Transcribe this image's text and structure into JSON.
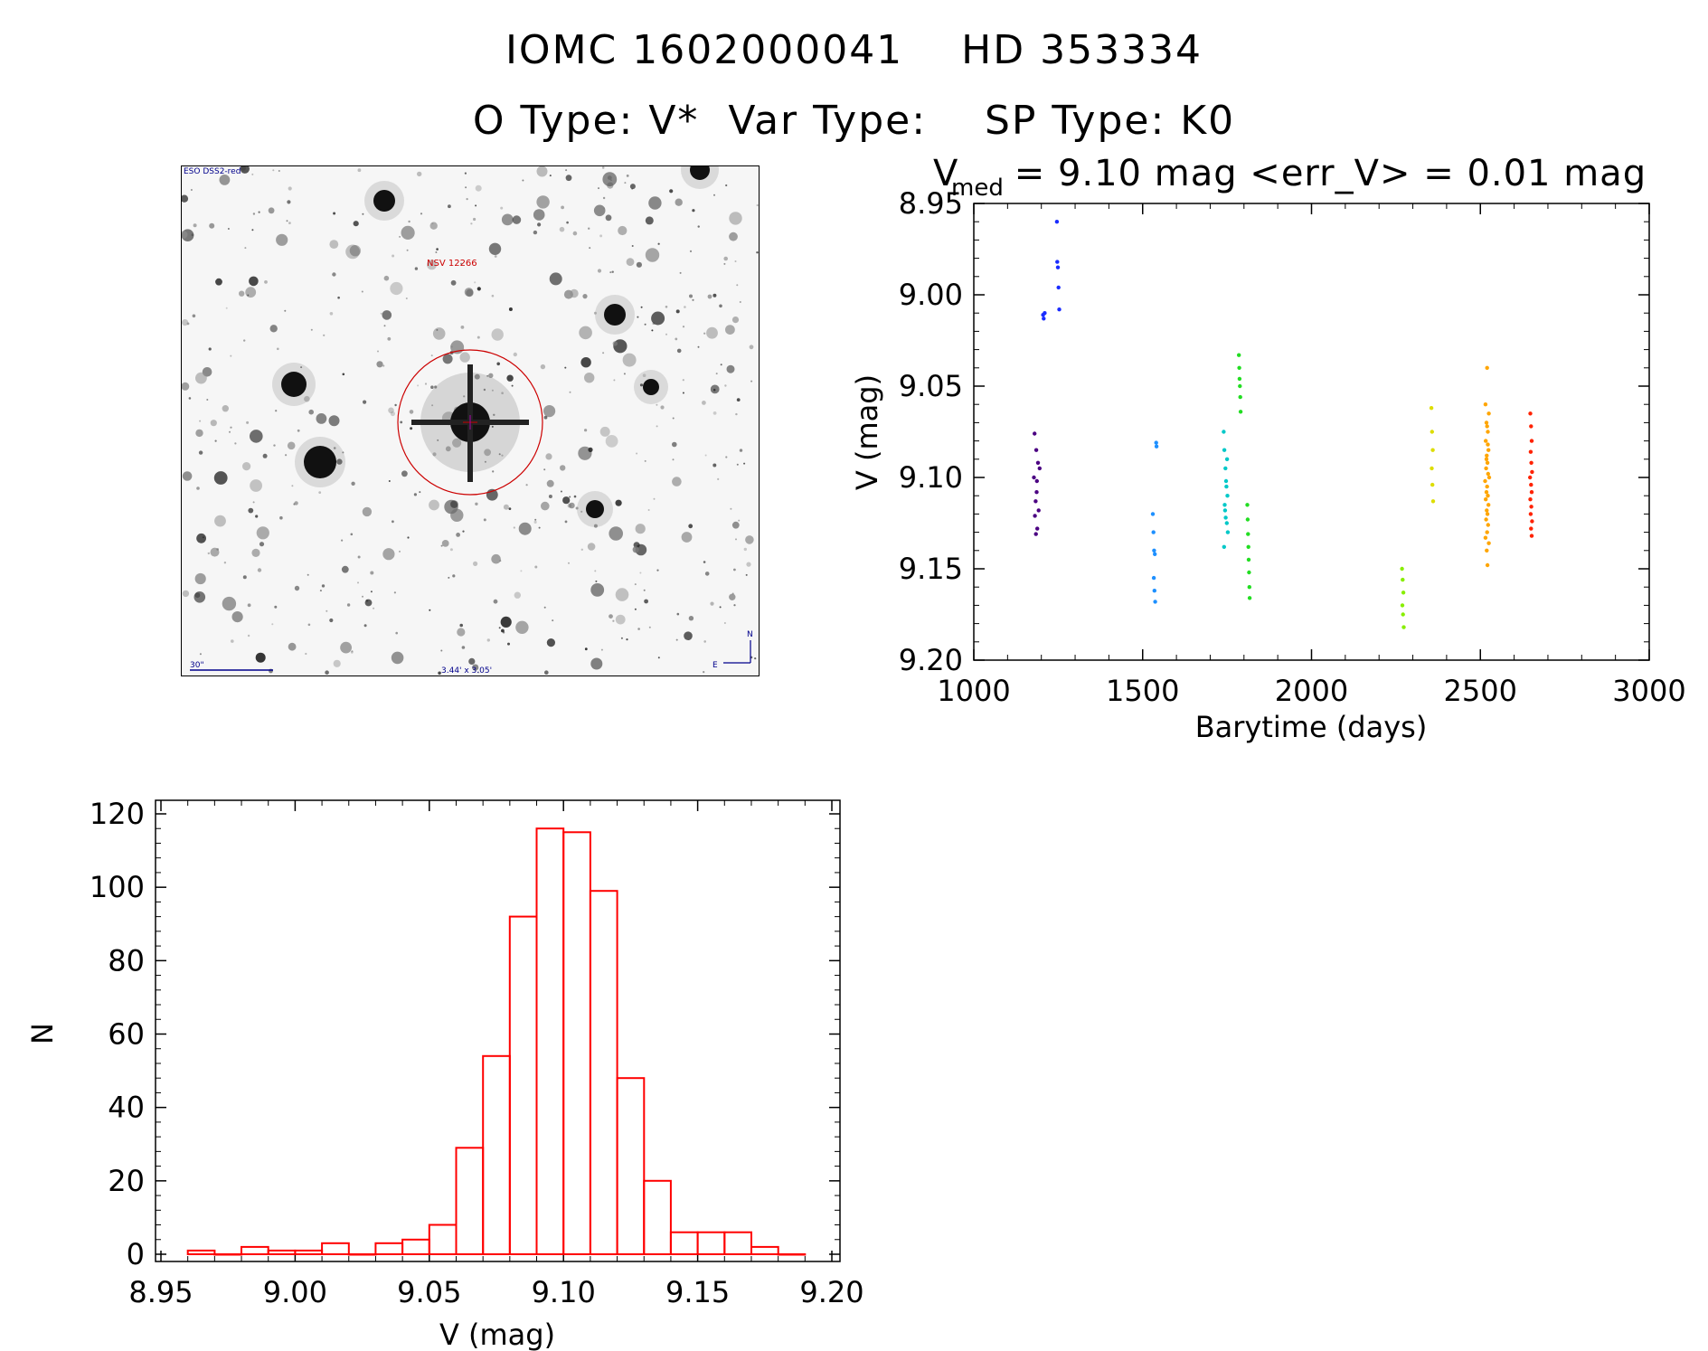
{
  "header": {
    "line1": "IOMC 1602000041    HD 353334",
    "line2": "O Type: V*  Var Type:    SP Type: K0"
  },
  "finder": {
    "survey_label": "ESO DSS2-red",
    "target_label": "NSV 12266",
    "scale_label": "30\"",
    "size_label": "3.44' x 3.05'",
    "north_label": "N",
    "east_label": "E"
  },
  "chart_data": [
    {
      "type": "scatter",
      "title_main": "V",
      "title_sub": "med",
      "title_rest": " = 9.10 mag <err_V> = 0.01 mag",
      "xlabel": "Barytime (days)",
      "ylabel": "V (mag)",
      "xlim": [
        1000,
        3000
      ],
      "ylim": [
        9.2,
        8.95
      ],
      "x_ticks": [
        "1000",
        "1500",
        "2000",
        "2500",
        "3000"
      ],
      "y_ticks": [
        "8.95",
        "9.00",
        "9.05",
        "9.10",
        "9.15",
        "9.20"
      ],
      "series": [
        {
          "name": "group1",
          "color": "#4b0082",
          "points": [
            [
              1180,
              9.076
            ],
            [
              1185,
              9.085
            ],
            [
              1190,
              9.092
            ],
            [
              1178,
              9.1
            ],
            [
              1186,
              9.108
            ],
            [
              1183,
              9.113
            ],
            [
              1192,
              9.118
            ],
            [
              1181,
              9.121
            ],
            [
              1188,
              9.128
            ],
            [
              1184,
              9.131
            ],
            [
              1195,
              9.095
            ],
            [
              1187,
              9.102
            ]
          ]
        },
        {
          "name": "group2",
          "color": "#1a2cff",
          "points": [
            [
              1205,
              9.011
            ],
            [
              1207,
              9.013
            ],
            [
              1210,
              9.01
            ],
            [
              1246,
              8.96
            ],
            [
              1247,
              8.982
            ],
            [
              1249,
              8.985
            ],
            [
              1251,
              8.996
            ],
            [
              1253,
              9.008
            ]
          ]
        },
        {
          "name": "group3",
          "color": "#1e90ff",
          "points": [
            [
              1530,
              9.12
            ],
            [
              1532,
              9.13
            ],
            [
              1534,
              9.14
            ],
            [
              1536,
              9.142
            ],
            [
              1533,
              9.155
            ],
            [
              1535,
              9.162
            ],
            [
              1537,
              9.168
            ],
            [
              1540,
              9.081
            ],
            [
              1541,
              9.083
            ]
          ]
        },
        {
          "name": "group4",
          "color": "#00c8c8",
          "points": [
            [
              1740,
              9.075
            ],
            [
              1742,
              9.085
            ],
            [
              1745,
              9.095
            ],
            [
              1748,
              9.105
            ],
            [
              1751,
              9.11
            ],
            [
              1744,
              9.118
            ],
            [
              1746,
              9.122
            ],
            [
              1749,
              9.125
            ],
            [
              1752,
              9.13
            ],
            [
              1741,
              9.138
            ],
            [
              1747,
              9.102
            ],
            [
              1750,
              9.09
            ],
            [
              1743,
              9.115
            ]
          ]
        },
        {
          "name": "group5",
          "color": "#22dd22",
          "points": [
            [
              1785,
              9.033
            ],
            [
              1786,
              9.04
            ],
            [
              1787,
              9.046
            ],
            [
              1788,
              9.05
            ],
            [
              1789,
              9.056
            ],
            [
              1790,
              9.064
            ],
            [
              1810,
              9.115
            ],
            [
              1811,
              9.123
            ],
            [
              1812,
              9.131
            ],
            [
              1813,
              9.138
            ],
            [
              1814,
              9.145
            ],
            [
              1815,
              9.152
            ],
            [
              1816,
              9.16
            ],
            [
              1817,
              9.166
            ]
          ]
        },
        {
          "name": "group6",
          "color": "#88ee00",
          "points": [
            [
              2268,
              9.15
            ],
            [
              2270,
              9.156
            ],
            [
              2272,
              9.163
            ],
            [
              2269,
              9.17
            ],
            [
              2271,
              9.175
            ],
            [
              2273,
              9.182
            ]
          ]
        },
        {
          "name": "group7",
          "color": "#dddd00",
          "points": [
            [
              2355,
              9.062
            ],
            [
              2357,
              9.075
            ],
            [
              2359,
              9.085
            ],
            [
              2356,
              9.095
            ],
            [
              2358,
              9.104
            ],
            [
              2360,
              9.113
            ]
          ]
        },
        {
          "name": "group8",
          "color": "#ffa500",
          "points": [
            [
              2520,
              9.04
            ],
            [
              2515,
              9.06
            ],
            [
              2525,
              9.065
            ],
            [
              2518,
              9.07
            ],
            [
              2522,
              9.075
            ],
            [
              2516,
              9.08
            ],
            [
              2524,
              9.085
            ],
            [
              2519,
              9.088
            ],
            [
              2521,
              9.092
            ],
            [
              2517,
              9.095
            ],
            [
              2523,
              9.098
            ],
            [
              2526,
              9.1
            ],
            [
              2514,
              9.102
            ],
            [
              2520,
              9.105
            ],
            [
              2518,
              9.108
            ],
            [
              2522,
              9.11
            ],
            [
              2516,
              9.112
            ],
            [
              2524,
              9.115
            ],
            [
              2519,
              9.118
            ],
            [
              2521,
              9.12
            ],
            [
              2517,
              9.123
            ],
            [
              2523,
              9.126
            ],
            [
              2520,
              9.13
            ],
            [
              2515,
              9.133
            ],
            [
              2525,
              9.136
            ],
            [
              2519,
              9.14
            ],
            [
              2521,
              9.148
            ],
            [
              2518,
              9.09
            ],
            [
              2522,
              9.082
            ],
            [
              2520,
              9.072
            ]
          ]
        },
        {
          "name": "group9",
          "color": "#ff2200",
          "points": [
            [
              2648,
              9.065
            ],
            [
              2650,
              9.072
            ],
            [
              2652,
              9.08
            ],
            [
              2649,
              9.086
            ],
            [
              2651,
              9.092
            ],
            [
              2653,
              9.097
            ],
            [
              2647,
              9.1
            ],
            [
              2650,
              9.104
            ],
            [
              2652,
              9.108
            ],
            [
              2648,
              9.112
            ],
            [
              2651,
              9.116
            ],
            [
              2649,
              9.12
            ],
            [
              2653,
              9.124
            ],
            [
              2650,
              9.128
            ],
            [
              2652,
              9.132
            ]
          ]
        }
      ]
    },
    {
      "type": "bar",
      "title": "",
      "xlabel": "V (mag)",
      "ylabel": "N",
      "xlim": [
        8.95,
        9.2
      ],
      "ylim": [
        0,
        120
      ],
      "x_ticks": [
        "8.95",
        "9.00",
        "9.05",
        "9.10",
        "9.15",
        "9.20"
      ],
      "y_ticks": [
        "0",
        "20",
        "40",
        "60",
        "80",
        "100",
        "120"
      ],
      "bin_width": 0.01,
      "bin_starts": [
        8.96,
        8.97,
        8.98,
        8.99,
        9.0,
        9.01,
        9.02,
        9.03,
        9.04,
        9.05,
        9.06,
        9.07,
        9.08,
        9.09,
        9.1,
        9.11,
        9.12,
        9.13,
        9.14,
        9.15,
        9.16,
        9.17,
        9.18
      ],
      "values": [
        1,
        0,
        2,
        1,
        1,
        3,
        0,
        3,
        4,
        8,
        29,
        54,
        92,
        116,
        115,
        99,
        48,
        20,
        6,
        6,
        6,
        2,
        0
      ],
      "color": "#ff0000"
    }
  ]
}
